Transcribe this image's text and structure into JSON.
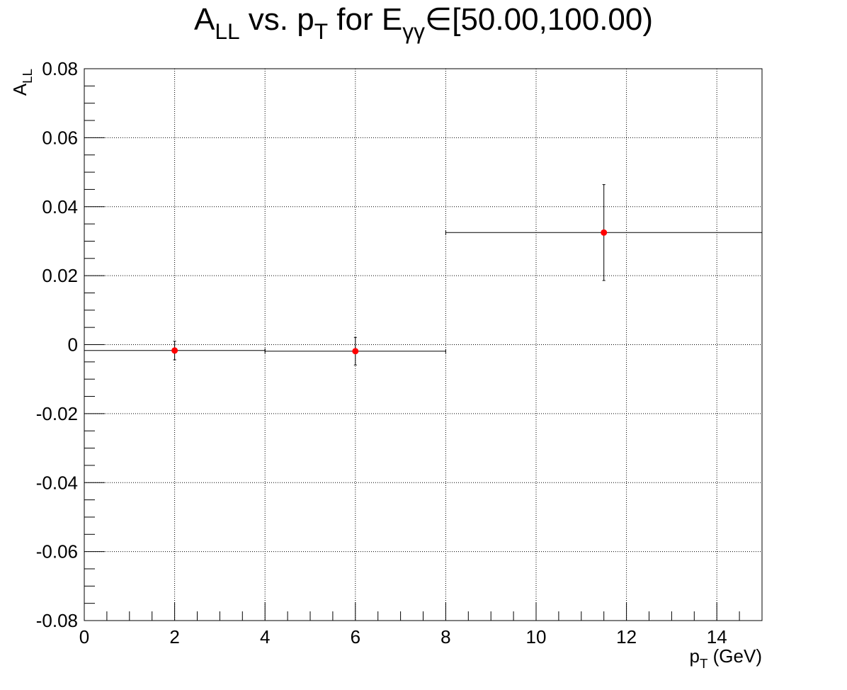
{
  "chart_data": {
    "type": "errorbar",
    "title": [
      {
        "text": "A"
      },
      {
        "text": "LL",
        "sub": true
      },
      {
        "text": " vs. p"
      },
      {
        "text": "T",
        "sub": true
      },
      {
        "text": " for E"
      },
      {
        "text": "γγ",
        "sub": true
      },
      {
        "text": "∈[50.00,100.00)"
      }
    ],
    "x_label": [
      {
        "text": "p"
      },
      {
        "text": "T",
        "sub": true
      },
      {
        "text": " (GeV)"
      }
    ],
    "y_label": [
      {
        "text": "A"
      },
      {
        "text": "LL",
        "sub": true
      }
    ],
    "x": [
      2,
      6,
      11.5
    ],
    "xerr": [
      2,
      2,
      3.5
    ],
    "values": [
      -0.0017,
      -0.0019,
      0.0325
    ],
    "yerr": [
      0.0027,
      0.004,
      0.0139
    ],
    "color": "#ff0000",
    "xlim": [
      0,
      15
    ],
    "xticks": [
      0,
      2,
      4,
      6,
      8,
      10,
      12,
      14
    ],
    "xminorticks": [
      0.5,
      1,
      1.5,
      2.5,
      3,
      3.5,
      4.5,
      5,
      5.5,
      6.5,
      7,
      7.5,
      8.5,
      9,
      9.5,
      10.5,
      11,
      11.5,
      12.5,
      13,
      13.5,
      14.5
    ],
    "ylim": [
      -0.08,
      0.08
    ],
    "yticks": [
      -0.08,
      -0.06,
      -0.04,
      -0.02,
      0,
      0.02,
      0.04,
      0.06,
      0.08
    ],
    "yminorticks": [
      -0.075,
      -0.07,
      -0.065,
      -0.055,
      -0.05,
      -0.045,
      -0.035,
      -0.03,
      -0.025,
      -0.015,
      -0.01,
      -0.005,
      0.005,
      0.01,
      0.015,
      0.025,
      0.03,
      0.035,
      0.045,
      0.05,
      0.055,
      0.065,
      0.07,
      0.075
    ],
    "grid": true
  }
}
